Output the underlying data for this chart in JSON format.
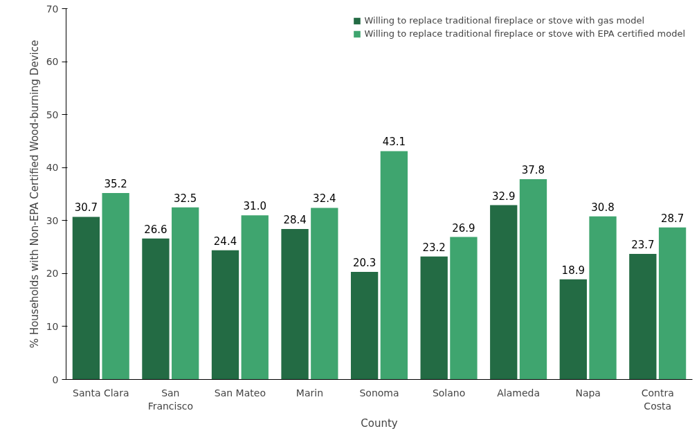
{
  "chart_data": {
    "type": "bar",
    "xlabel": "County",
    "ylabel": "% Households with Non-EPA Certified Wood-burning Device",
    "categories": [
      "Santa Clara",
      "San Francisco",
      "San Mateo",
      "Marin",
      "Sonoma",
      "Solano",
      "Alameda",
      "Napa",
      "Contra Costa"
    ],
    "series": [
      {
        "name": "Willing to replace traditional fireplace or stove with gas model",
        "color": "#236b44",
        "values": [
          30.7,
          26.6,
          24.4,
          28.4,
          20.3,
          23.2,
          32.9,
          18.9,
          23.7
        ]
      },
      {
        "name": "Willing to replace traditional fireplace or stove with EPA certified model",
        "color": "#3fa56f",
        "values": [
          35.2,
          32.5,
          31.0,
          32.4,
          43.1,
          26.9,
          37.8,
          30.8,
          28.7
        ],
        "value_labels": [
          "35.2",
          "32.5",
          "31.0",
          "32.4",
          "43.1",
          "26.9",
          "37.8",
          "30.8",
          "28.7"
        ]
      }
    ],
    "ylim": [
      0,
      70
    ],
    "yticks": [
      0,
      10,
      20,
      30,
      40,
      50,
      60,
      70
    ],
    "grid": false,
    "legend": "top right",
    "data_labels": true
  }
}
